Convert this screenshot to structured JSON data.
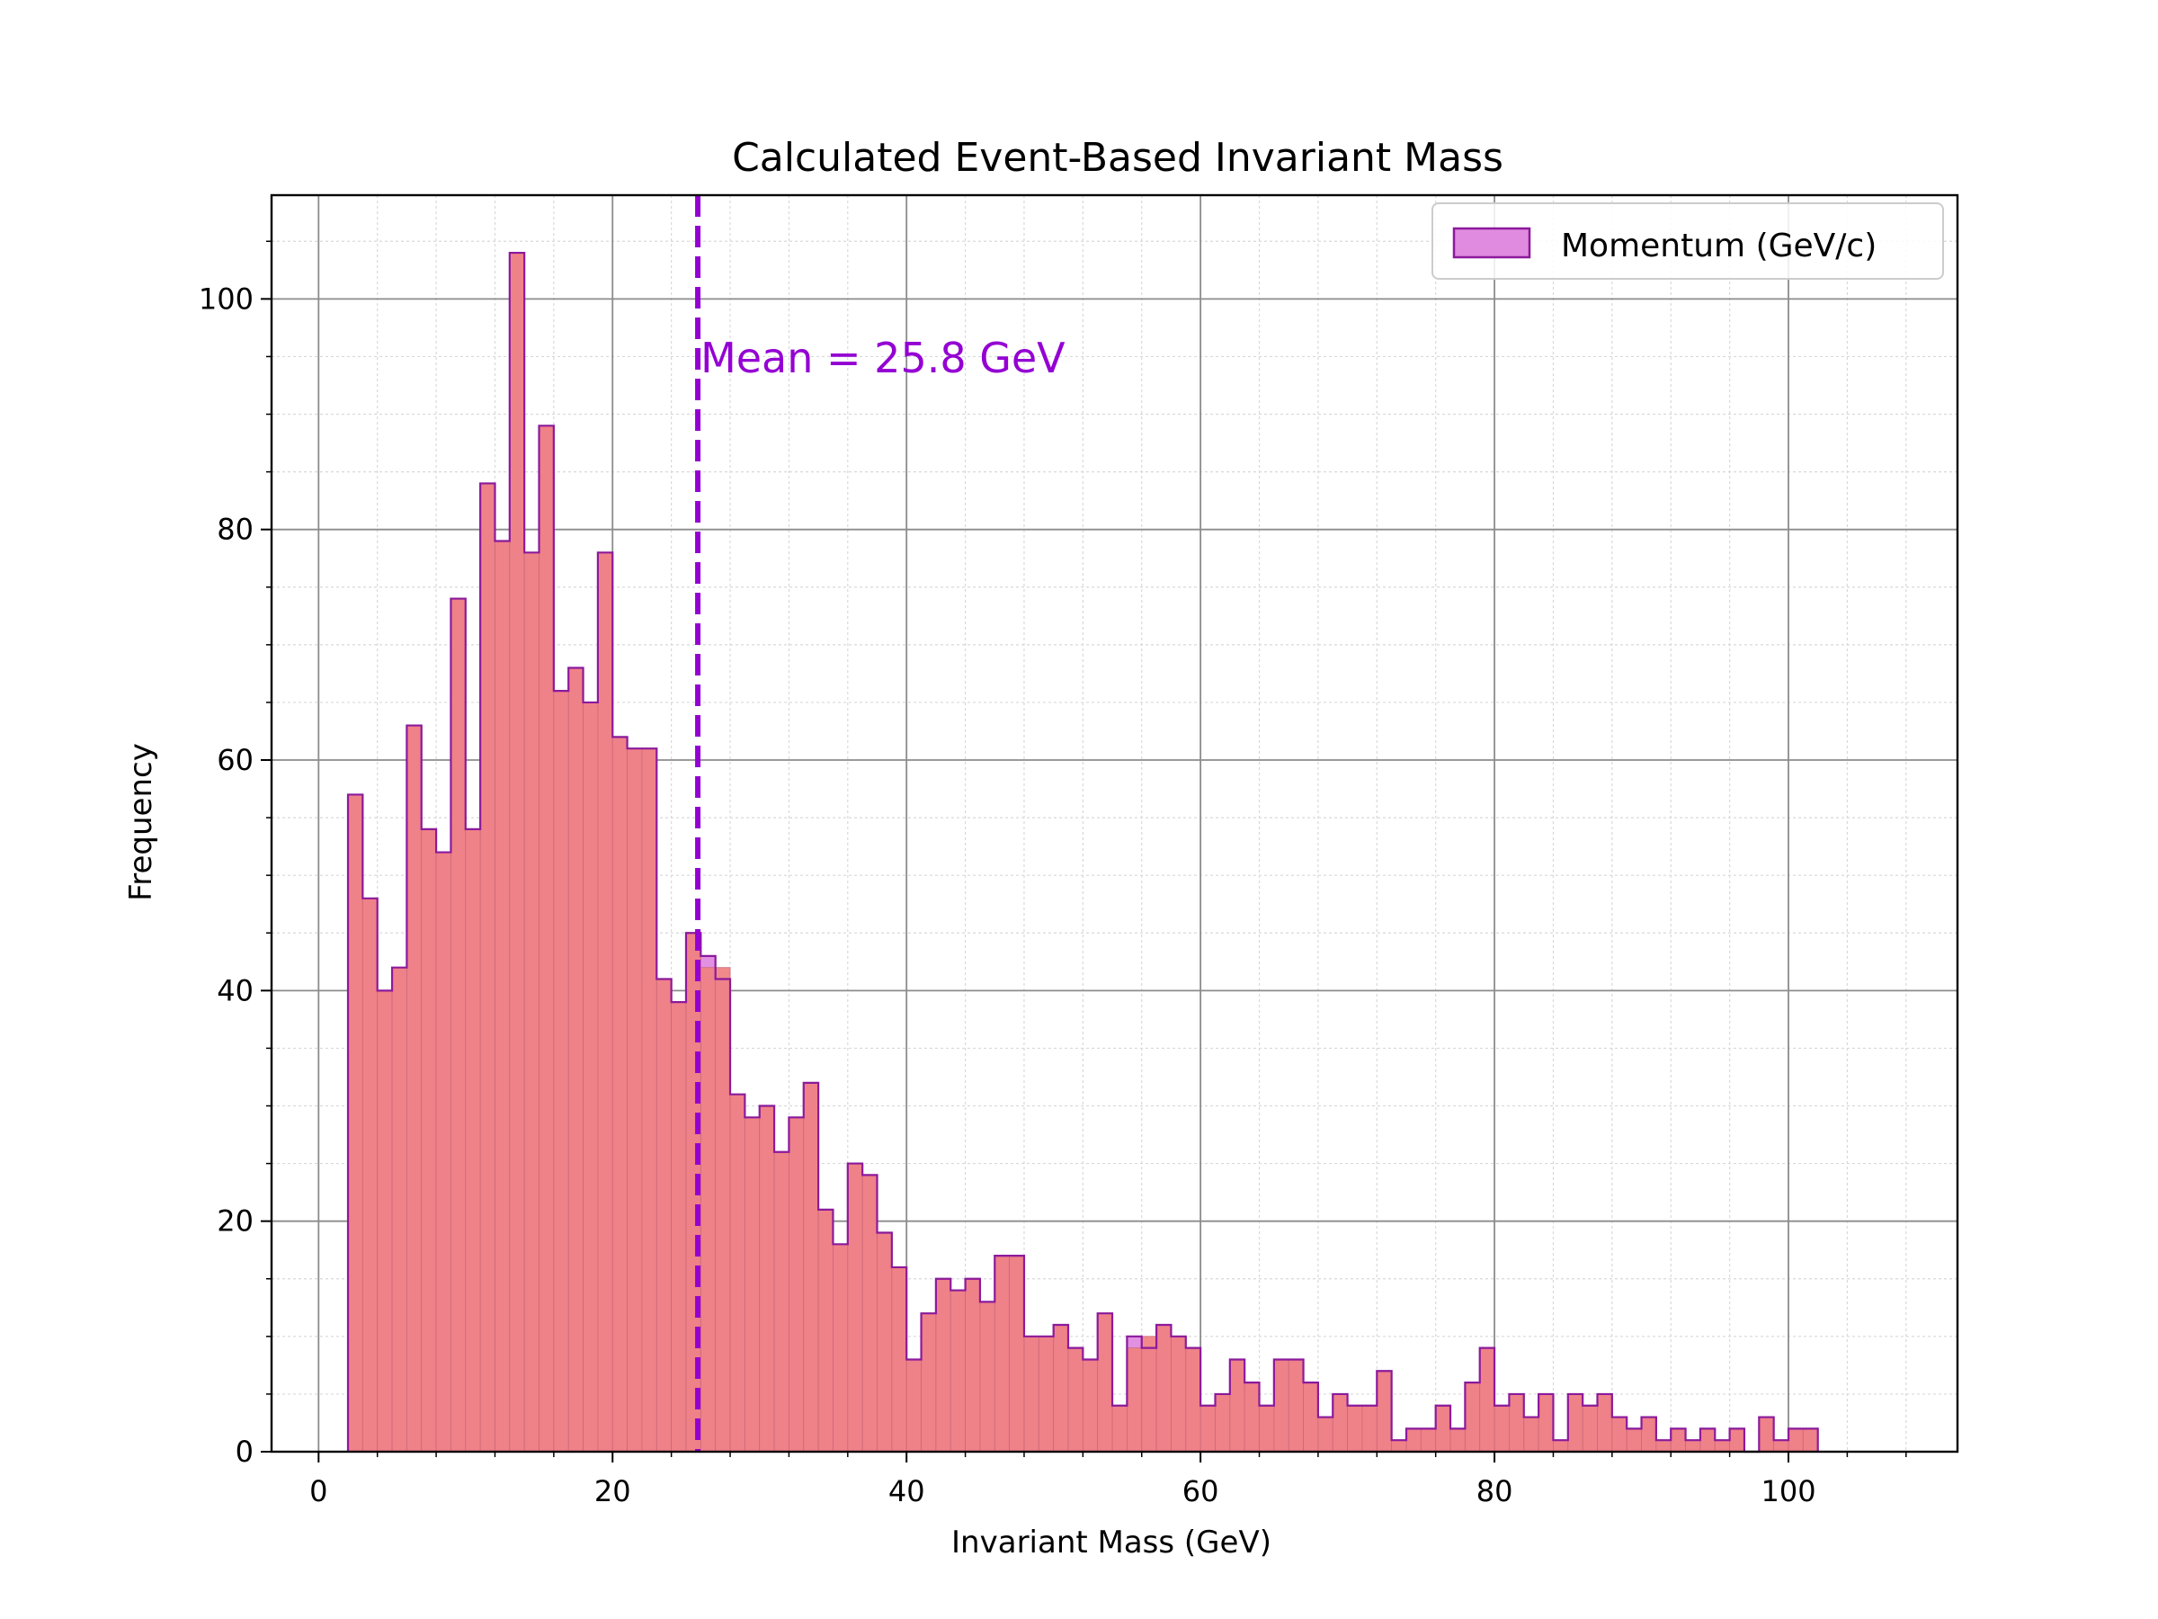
{
  "chart_data": {
    "type": "bar",
    "title": "Calculated Event-Based Invariant Mass",
    "xlabel": "Invariant Mass (GeV)",
    "ylabel": "Frequency",
    "xlim": [
      -3.2,
      111.5
    ],
    "ylim": [
      0,
      109
    ],
    "xticks": [
      0,
      20,
      40,
      60,
      80,
      100
    ],
    "yticks": [
      0,
      20,
      40,
      60,
      80,
      100
    ],
    "grid": true,
    "legend_position": "top-right",
    "bin_start": 2.0,
    "bin_width": 1.0,
    "series": [
      {
        "name": "Momentum (GeV/c)",
        "color": "#e08ae0",
        "edge_color": "#8b1a9b",
        "values": [
          57,
          48,
          40,
          42,
          63,
          54,
          52,
          74,
          54,
          84,
          79,
          104,
          78,
          89,
          66,
          68,
          65,
          78,
          62,
          61,
          61,
          41,
          39,
          45,
          43,
          41,
          31,
          29,
          30,
          26,
          29,
          32,
          21,
          18,
          25,
          24,
          19,
          16,
          8,
          12,
          15,
          14,
          15,
          13,
          17,
          17,
          10,
          10,
          11,
          9,
          8,
          12,
          4,
          10,
          9,
          11,
          10,
          9,
          4,
          5,
          8,
          6,
          4,
          8,
          8,
          6,
          3,
          5,
          4,
          4,
          7,
          1,
          2,
          2,
          4,
          2,
          6,
          9,
          4,
          5,
          3,
          5,
          1,
          5,
          4,
          5,
          3,
          2,
          3,
          1,
          2,
          1,
          2,
          1,
          2,
          0,
          3,
          1,
          2,
          2
        ]
      },
      {
        "name": "",
        "color": "#f08080",
        "values": [
          57,
          48,
          40,
          42,
          63,
          54,
          52,
          74,
          54,
          84,
          79,
          104,
          78,
          89,
          66,
          68,
          65,
          78,
          62,
          61,
          61,
          41,
          39,
          45,
          42,
          42,
          31,
          29,
          30,
          26,
          29,
          32,
          21,
          18,
          25,
          24,
          19,
          16,
          8,
          12,
          15,
          14,
          15,
          13,
          17,
          17,
          10,
          10,
          11,
          9,
          8,
          12,
          4,
          9,
          10,
          11,
          10,
          9,
          4,
          5,
          8,
          6,
          4,
          8,
          8,
          6,
          3,
          5,
          4,
          4,
          7,
          1,
          2,
          2,
          4,
          2,
          6,
          9,
          4,
          5,
          3,
          5,
          1,
          5,
          4,
          5,
          3,
          2,
          3,
          1,
          2,
          1,
          2,
          1,
          2,
          0,
          3,
          1,
          2,
          2
        ]
      }
    ],
    "annotations": [
      {
        "text": "Mean = 25.8 GeV",
        "x": 25.8,
        "color": "#9400d3",
        "line_style": "dashed"
      }
    ]
  }
}
